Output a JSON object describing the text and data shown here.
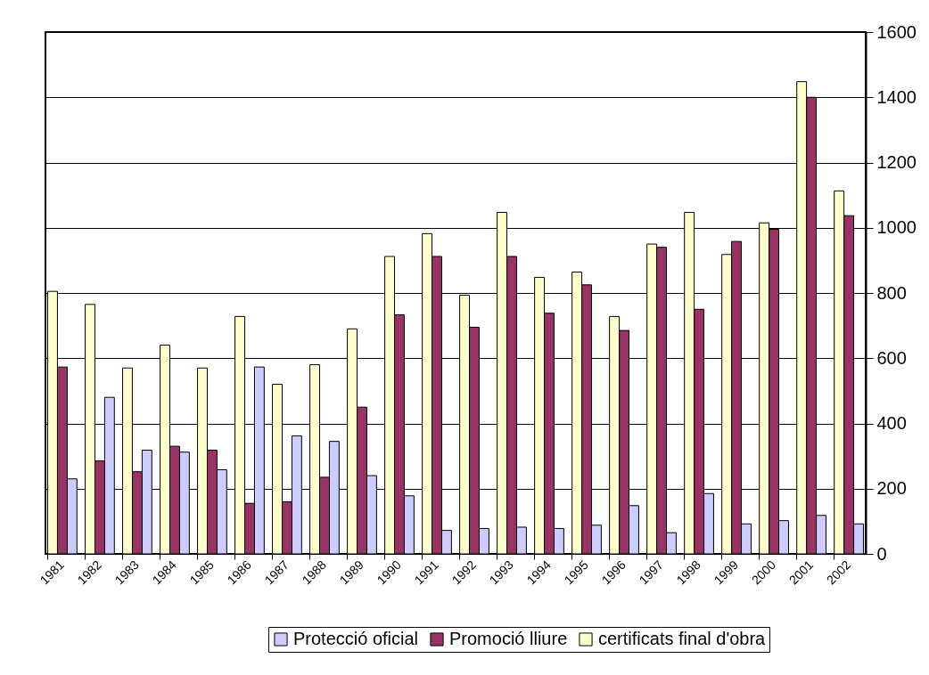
{
  "chart_data": {
    "type": "bar",
    "categories": [
      "1981",
      "1982",
      "1983",
      "1984",
      "1985",
      "1986",
      "1987",
      "1988",
      "1989",
      "1990",
      "1991",
      "1992",
      "1993",
      "1994",
      "1995",
      "1996",
      "1997",
      "1998",
      "1999",
      "2000",
      "2001",
      "2002"
    ],
    "series": [
      {
        "name": "Protecció oficial",
        "color": "#ccccff",
        "values": [
          230,
          480,
          318,
          312,
          258,
          573,
          362,
          345,
          240,
          178,
          72,
          78,
          82,
          78,
          88,
          148,
          65,
          185,
          92,
          102,
          118,
          92
        ]
      },
      {
        "name": "Promoció lliure",
        "color": "#993366",
        "values": [
          573,
          285,
          252,
          330,
          318,
          155,
          160,
          235,
          450,
          733,
          912,
          695,
          912,
          738,
          825,
          685,
          940,
          750,
          958,
          995,
          1400,
          1037
        ]
      },
      {
        "name": "certificats final d'obra",
        "color": "#ffffcc",
        "values": [
          805,
          765,
          570,
          640,
          570,
          728,
          520,
          580,
          690,
          912,
          982,
          793,
          1047,
          848,
          864,
          728,
          950,
          1047,
          918,
          1015,
          1448,
          1113
        ]
      }
    ],
    "ylim": [
      0,
      1600
    ],
    "yticks": [
      0,
      200,
      400,
      600,
      800,
      1000,
      1200,
      1400,
      1600
    ],
    "grid": "y",
    "legend": "bottom"
  }
}
